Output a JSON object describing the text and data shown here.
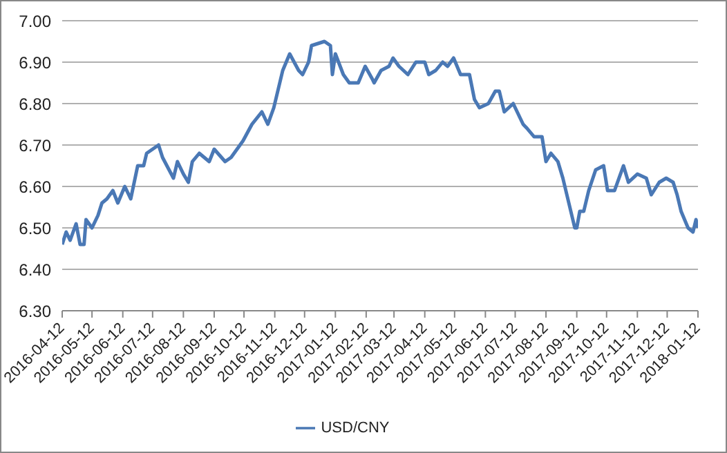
{
  "chart_data": {
    "type": "line",
    "x": [
      "2016-04-12",
      "2016-04-16",
      "2016-04-20",
      "2016-04-26",
      "2016-04-30",
      "2016-05-04",
      "2016-05-06",
      "2016-05-12",
      "2016-05-18",
      "2016-05-22",
      "2016-05-27",
      "2016-06-02",
      "2016-06-07",
      "2016-06-14",
      "2016-06-20",
      "2016-06-27",
      "2016-07-03",
      "2016-07-06",
      "2016-07-18",
      "2016-07-22",
      "2016-08-02",
      "2016-08-06",
      "2016-08-12",
      "2016-08-17",
      "2016-08-21",
      "2016-08-28",
      "2016-09-07",
      "2016-09-12",
      "2016-09-23",
      "2016-09-29",
      "2016-10-11",
      "2016-10-20",
      "2016-10-30",
      "2016-11-05",
      "2016-11-11",
      "2016-11-20",
      "2016-11-27",
      "2016-12-06",
      "2016-12-10",
      "2016-12-16",
      "2016-12-19",
      "2017-01-01",
      "2017-01-07",
      "2017-01-09",
      "2017-01-12",
      "2017-01-20",
      "2017-01-26",
      "2017-02-04",
      "2017-02-11",
      "2017-02-18",
      "2017-02-20",
      "2017-02-27",
      "2017-03-07",
      "2017-03-11",
      "2017-03-17",
      "2017-03-26",
      "2017-04-03",
      "2017-04-12",
      "2017-04-16",
      "2017-04-23",
      "2017-04-30",
      "2017-05-05",
      "2017-05-11",
      "2017-05-18",
      "2017-05-27",
      "2017-06-01",
      "2017-06-06",
      "2017-06-15",
      "2017-06-22",
      "2017-06-26",
      "2017-07-01",
      "2017-07-10",
      "2017-07-20",
      "2017-07-24",
      "2017-07-31",
      "2017-08-08",
      "2017-08-12",
      "2017-08-17",
      "2017-08-24",
      "2017-08-29",
      "2017-09-02",
      "2017-09-07",
      "2017-09-10",
      "2017-09-12",
      "2017-09-15",
      "2017-09-19",
      "2017-09-24",
      "2017-10-01",
      "2017-10-09",
      "2017-10-13",
      "2017-10-20",
      "2017-10-29",
      "2017-11-03",
      "2017-11-12",
      "2017-11-21",
      "2017-11-26",
      "2017-12-04",
      "2017-12-11",
      "2017-12-18",
      "2017-12-22",
      "2017-12-26",
      "2018-01-02",
      "2018-01-07",
      "2018-01-10",
      "2018-01-12"
    ],
    "series": [
      {
        "name": "USD/CNY",
        "color": "#4a78b5",
        "values": [
          6.46,
          6.49,
          6.47,
          6.51,
          6.46,
          6.46,
          6.52,
          6.5,
          6.53,
          6.56,
          6.57,
          6.59,
          6.56,
          6.6,
          6.57,
          6.65,
          6.65,
          6.68,
          6.7,
          6.67,
          6.62,
          6.66,
          6.63,
          6.61,
          6.66,
          6.68,
          6.66,
          6.69,
          6.66,
          6.67,
          6.71,
          6.75,
          6.78,
          6.75,
          6.79,
          6.88,
          6.92,
          6.88,
          6.87,
          6.9,
          6.94,
          6.95,
          6.94,
          6.87,
          6.92,
          6.87,
          6.85,
          6.85,
          6.89,
          6.86,
          6.85,
          6.88,
          6.89,
          6.91,
          6.89,
          6.87,
          6.9,
          6.9,
          6.87,
          6.88,
          6.9,
          6.89,
          6.91,
          6.87,
          6.87,
          6.81,
          6.79,
          6.8,
          6.83,
          6.83,
          6.78,
          6.8,
          6.75,
          6.74,
          6.72,
          6.72,
          6.66,
          6.68,
          6.66,
          6.62,
          6.58,
          6.53,
          6.5,
          6.5,
          6.54,
          6.54,
          6.59,
          6.64,
          6.65,
          6.59,
          6.59,
          6.65,
          6.61,
          6.63,
          6.62,
          6.58,
          6.61,
          6.62,
          6.61,
          6.58,
          6.54,
          6.5,
          6.49,
          6.52,
          6.5
        ]
      }
    ],
    "xlim": [
      "2016-04-12",
      "2018-01-12"
    ],
    "xticks": [
      "2016-04-12",
      "2016-05-12",
      "2016-06-12",
      "2016-07-12",
      "2016-08-12",
      "2016-09-12",
      "2016-10-12",
      "2016-11-12",
      "2016-12-12",
      "2017-01-12",
      "2017-02-12",
      "2017-03-12",
      "2017-04-12",
      "2017-05-12",
      "2017-06-12",
      "2017-07-12",
      "2017-08-12",
      "2017-09-12",
      "2017-10-12",
      "2017-11-12",
      "2017-12-12",
      "2018-01-12"
    ],
    "ylim": [
      6.3,
      7.0
    ],
    "yticks": [
      {
        "value": 6.3,
        "label": "6.30"
      },
      {
        "value": 6.4,
        "label": "6.40"
      },
      {
        "value": 6.5,
        "label": "6.50"
      },
      {
        "value": 6.6,
        "label": "6.60"
      },
      {
        "value": 6.7,
        "label": "6.70"
      },
      {
        "value": 6.8,
        "label": "6.80"
      },
      {
        "value": 6.9,
        "label": "6.90"
      },
      {
        "value": 7.0,
        "label": "7.00"
      }
    ],
    "grid": "y",
    "legend": "bottom",
    "marker": "none",
    "line_style": "solid"
  }
}
